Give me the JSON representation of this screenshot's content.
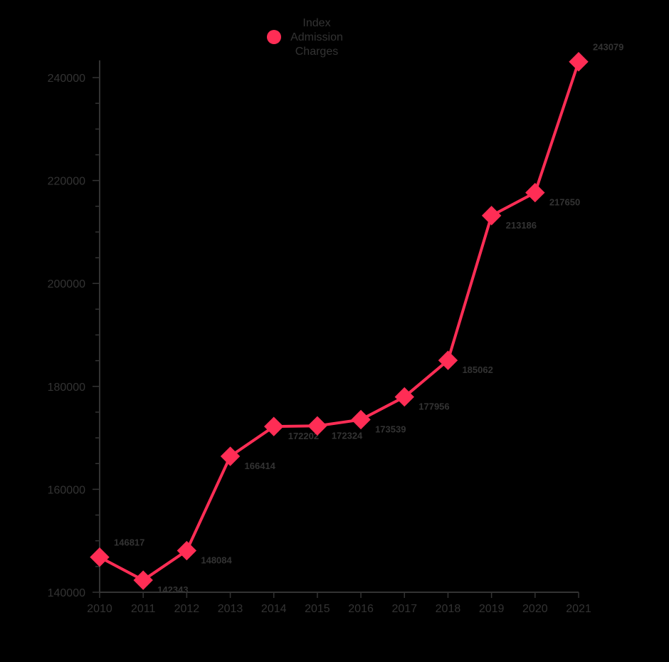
{
  "chart_data": {
    "type": "line",
    "title": "",
    "xlabel": "",
    "ylabel": "",
    "x": [
      "2010",
      "2011",
      "2012",
      "2013",
      "2014",
      "2015",
      "2016",
      "2017",
      "2018",
      "2019",
      "2020",
      "2021"
    ],
    "series": [
      {
        "name": "Index Admission Charges",
        "name_lines": [
          "Index",
          "Admission",
          "Charges"
        ],
        "values": [
          146817,
          142343,
          148084,
          166414,
          172202,
          172324,
          173539,
          177956,
          185062,
          213186,
          217650,
          243079
        ],
        "color": "#ff2d55",
        "marker": "diamond"
      }
    ],
    "ylim": [
      140000,
      243079
    ],
    "y_ticks": [
      140000,
      160000,
      180000,
      200000,
      220000,
      240000
    ],
    "y_minor_step": 5000,
    "grid": false,
    "legend": "top-center",
    "data_labels": true
  },
  "colors": {
    "background": "#000000",
    "axis": "#333333",
    "text": "#333333",
    "series": "#ff2d55"
  }
}
